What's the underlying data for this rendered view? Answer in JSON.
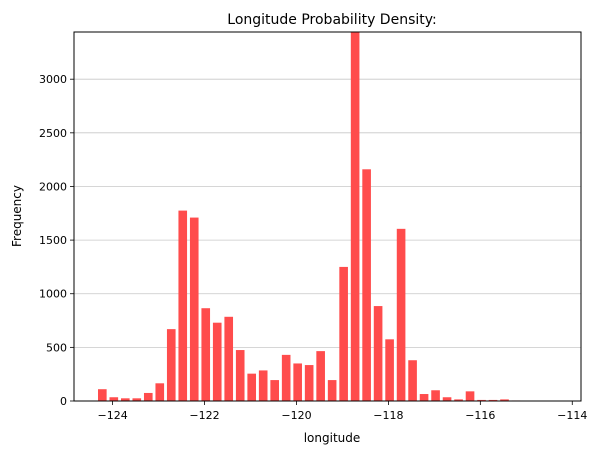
{
  "chart_data": {
    "type": "bar",
    "title": "Longitude Probability Density:",
    "xlabel": "longitude",
    "ylabel": "Frequency",
    "xlim": [
      -124.84,
      -113.81
    ],
    "ylim": [
      0,
      3440
    ],
    "xticks": [
      -124,
      -122,
      -120,
      -118,
      -116,
      -114
    ],
    "xtick_labels": [
      "−124",
      "−122",
      "−120",
      "−118",
      "−116",
      "−114"
    ],
    "yticks": [
      0,
      500,
      1000,
      1500,
      2000,
      2500,
      3000
    ],
    "yticks_labels": [
      "0",
      "500",
      "1000",
      "1500",
      "2000",
      "2500",
      "3000"
    ],
    "grid": "horizontal",
    "bar_color": "#ff4c4c",
    "bin_width": 0.25,
    "bins": [
      {
        "x": -124.224,
        "value": 110
      },
      {
        "x": -123.974,
        "value": 35
      },
      {
        "x": -123.724,
        "value": 25
      },
      {
        "x": -123.474,
        "value": 25
      },
      {
        "x": -123.224,
        "value": 75
      },
      {
        "x": -122.974,
        "value": 165
      },
      {
        "x": -122.724,
        "value": 670
      },
      {
        "x": -122.474,
        "value": 1775
      },
      {
        "x": -122.224,
        "value": 1710
      },
      {
        "x": -121.974,
        "value": 865
      },
      {
        "x": -121.724,
        "value": 730
      },
      {
        "x": -121.474,
        "value": 785
      },
      {
        "x": -121.224,
        "value": 475
      },
      {
        "x": -120.974,
        "value": 255
      },
      {
        "x": -120.724,
        "value": 285
      },
      {
        "x": -120.474,
        "value": 195
      },
      {
        "x": -120.224,
        "value": 430
      },
      {
        "x": -119.974,
        "value": 350
      },
      {
        "x": -119.724,
        "value": 335
      },
      {
        "x": -119.474,
        "value": 465
      },
      {
        "x": -119.224,
        "value": 195
      },
      {
        "x": -118.974,
        "value": 1250
      },
      {
        "x": -118.724,
        "value": 3440
      },
      {
        "x": -118.474,
        "value": 2160
      },
      {
        "x": -118.224,
        "value": 885
      },
      {
        "x": -117.974,
        "value": 575
      },
      {
        "x": -117.724,
        "value": 1605
      },
      {
        "x": -117.474,
        "value": 380
      },
      {
        "x": -117.224,
        "value": 65
      },
      {
        "x": -116.974,
        "value": 100
      },
      {
        "x": -116.724,
        "value": 35
      },
      {
        "x": -116.474,
        "value": 15
      },
      {
        "x": -116.224,
        "value": 90
      },
      {
        "x": -115.974,
        "value": 10
      },
      {
        "x": -115.724,
        "value": 10
      },
      {
        "x": -115.474,
        "value": 15
      },
      {
        "x": -115.224,
        "value": 5
      }
    ]
  }
}
